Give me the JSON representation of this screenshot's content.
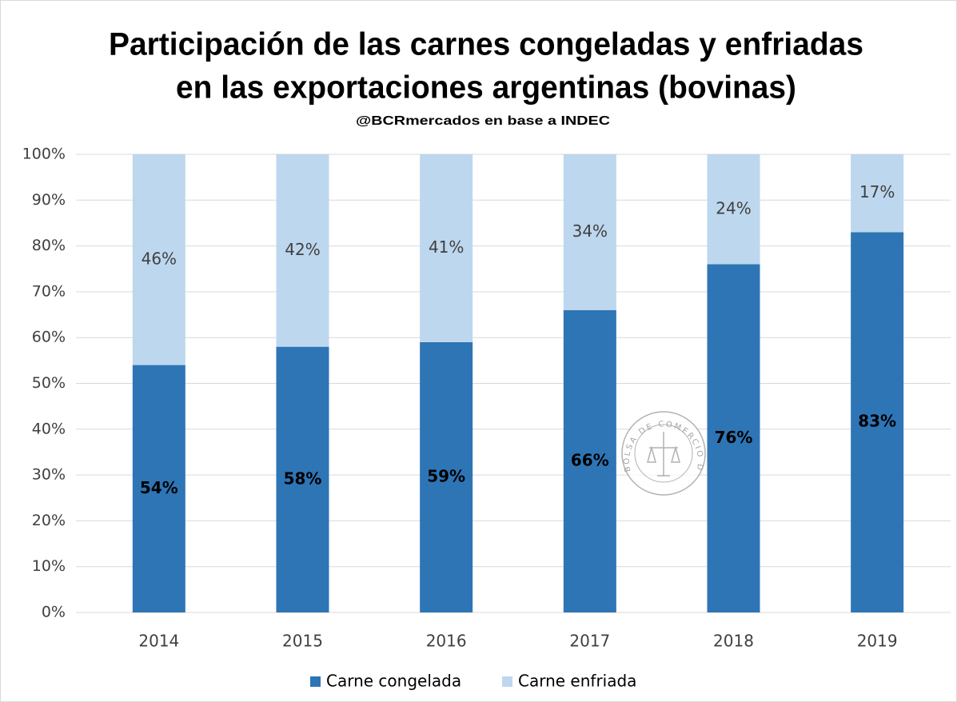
{
  "chart_data": {
    "type": "stacked_bar",
    "title": [
      "Participación de las carnes congeladas y enfriadas",
      "en las exportaciones argentinas (bovinas)"
    ],
    "subtitle": "@BCRmercados en base a INDEC",
    "watermark": "BOLSA DE COMERCIO DE ROSARIO",
    "categories": [
      "2014",
      "2015",
      "2016",
      "2017",
      "2018",
      "2019"
    ],
    "series": [
      {
        "name": "Carne congelada",
        "color": "#2e75b6",
        "values": [
          54,
          58,
          59,
          66,
          76,
          83
        ],
        "value_labels": [
          "54%",
          "58%",
          "59%",
          "66%",
          "76%",
          "83%"
        ]
      },
      {
        "name": "Carne enfriada",
        "color": "#bdd7ee",
        "values": [
          46,
          42,
          41,
          34,
          24,
          17
        ],
        "value_labels": [
          "46%",
          "42%",
          "41%",
          "34%",
          "24%",
          "17%"
        ]
      }
    ],
    "ylim": [
      0,
      100
    ],
    "yticks": [
      {
        "value": 0,
        "label": "0%"
      },
      {
        "value": 10,
        "label": "10%"
      },
      {
        "value": 20,
        "label": "20%"
      },
      {
        "value": 30,
        "label": "30%"
      },
      {
        "value": 40,
        "label": "40%"
      },
      {
        "value": 50,
        "label": "50%"
      },
      {
        "value": 60,
        "label": "60%"
      },
      {
        "value": 70,
        "label": "70%"
      },
      {
        "value": 80,
        "label": "80%"
      },
      {
        "value": 90,
        "label": "90%"
      },
      {
        "value": 100,
        "label": "100%"
      }
    ],
    "grid": true,
    "legend": "bottom"
  }
}
